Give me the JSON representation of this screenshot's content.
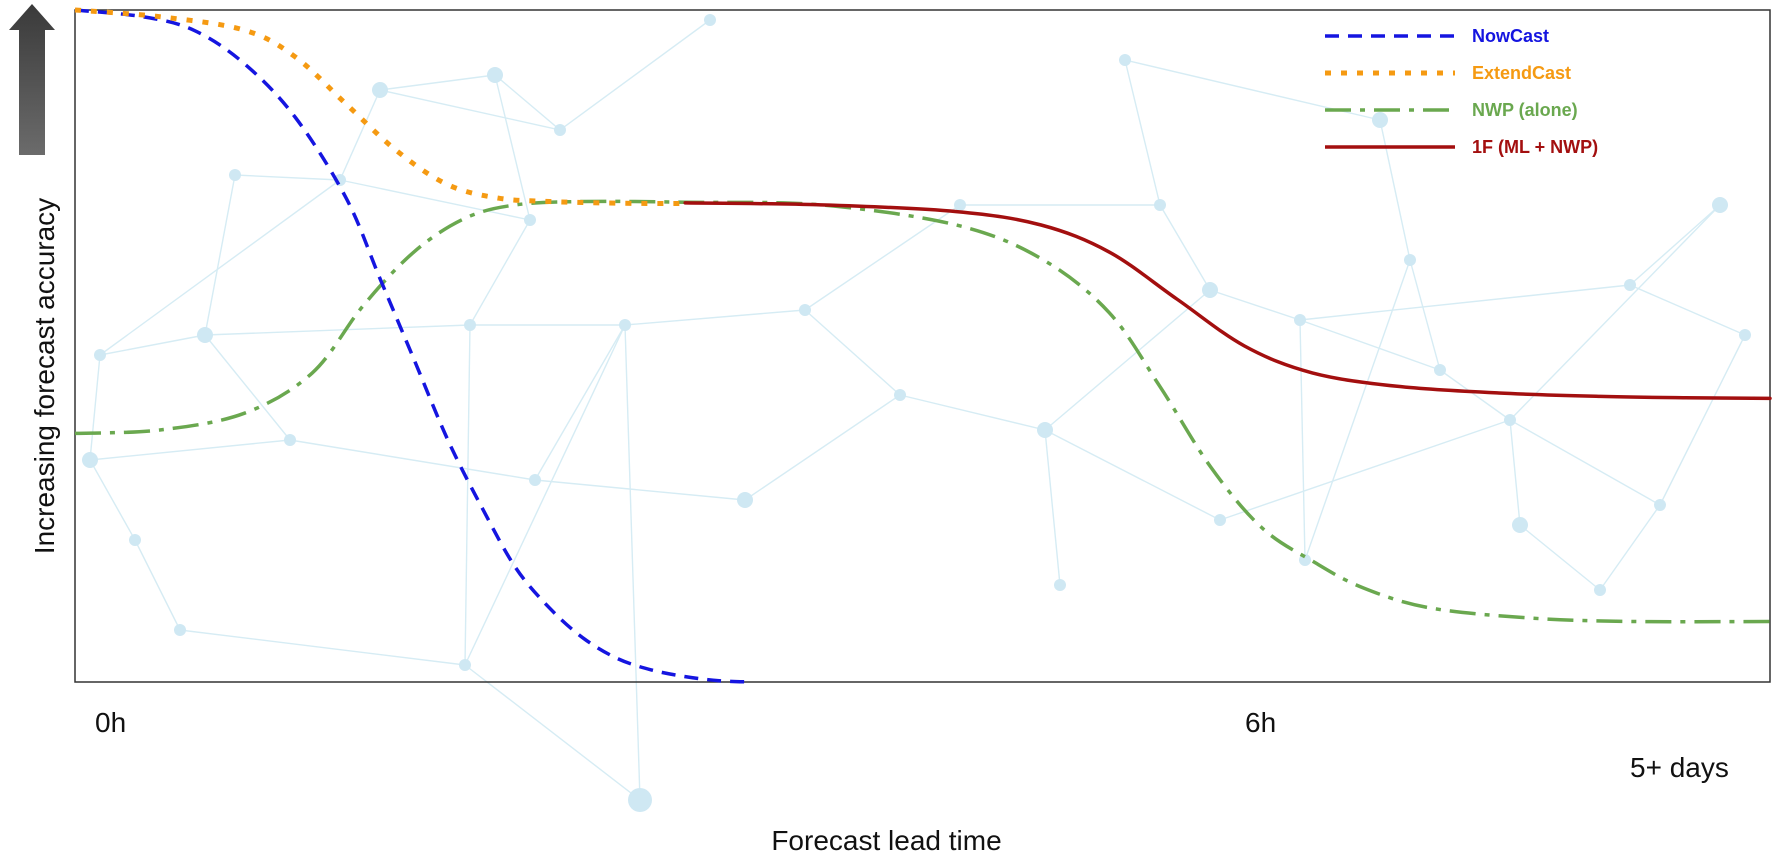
{
  "axes": {
    "ylabel": "Increasing forecast accuracy",
    "xlabel": "Forecast lead time",
    "xticks": [
      "0h",
      "6h",
      "5+ days"
    ]
  },
  "chart_data": {
    "type": "line",
    "xlabel": "Forecast lead time",
    "ylabel": "Increasing forecast accuracy",
    "xlim": [
      0,
      1
    ],
    "ylim": [
      0,
      1
    ],
    "tick_labels": [
      "0h",
      "6h",
      "5+ days"
    ],
    "grid": false,
    "legend_position": "top-right",
    "series": [
      {
        "name": "NowCast",
        "color": "#1515e0",
        "style": "dashed",
        "x": [
          0.0,
          0.04,
          0.07,
          0.1,
          0.13,
          0.16,
          0.18,
          0.2,
          0.22,
          0.24,
          0.26,
          0.28,
          0.3,
          0.32,
          0.34,
          0.36,
          0.38,
          0.4
        ],
        "y": [
          1.0,
          0.99,
          0.97,
          0.92,
          0.84,
          0.72,
          0.6,
          0.48,
          0.36,
          0.26,
          0.17,
          0.11,
          0.065,
          0.035,
          0.018,
          0.008,
          0.002,
          0.0
        ]
      },
      {
        "name": "ExtendCast",
        "color": "#f59a12",
        "style": "dotted",
        "x": [
          0.0,
          0.05,
          0.1,
          0.13,
          0.16,
          0.19,
          0.22,
          0.25,
          0.28,
          0.31,
          0.34,
          0.36
        ],
        "y": [
          1.0,
          0.99,
          0.97,
          0.93,
          0.86,
          0.79,
          0.74,
          0.72,
          0.715,
          0.713,
          0.712,
          0.712
        ]
      },
      {
        "name": "NWP (alone)",
        "color": "#6aa84f",
        "style": "dashdot",
        "x": [
          0.0,
          0.05,
          0.1,
          0.14,
          0.17,
          0.2,
          0.23,
          0.26,
          0.3,
          0.36,
          0.44,
          0.52,
          0.57,
          0.61,
          0.64,
          0.67,
          0.7,
          0.73,
          0.76,
          0.8,
          0.86,
          0.92,
          1.0
        ],
        "y": [
          0.37,
          0.375,
          0.4,
          0.46,
          0.56,
          0.64,
          0.69,
          0.71,
          0.715,
          0.714,
          0.71,
          0.68,
          0.63,
          0.55,
          0.44,
          0.32,
          0.23,
          0.18,
          0.14,
          0.11,
          0.095,
          0.09,
          0.09
        ]
      },
      {
        "name": "1F (ML + NWP)",
        "color": "#a30f0f",
        "style": "solid",
        "x": [
          0.36,
          0.44,
          0.52,
          0.57,
          0.61,
          0.65,
          0.69,
          0.73,
          0.78,
          0.84,
          0.9,
          0.95,
          1.0
        ],
        "y": [
          0.713,
          0.71,
          0.7,
          0.68,
          0.64,
          0.57,
          0.5,
          0.46,
          0.44,
          0.43,
          0.425,
          0.423,
          0.422
        ]
      }
    ]
  }
}
